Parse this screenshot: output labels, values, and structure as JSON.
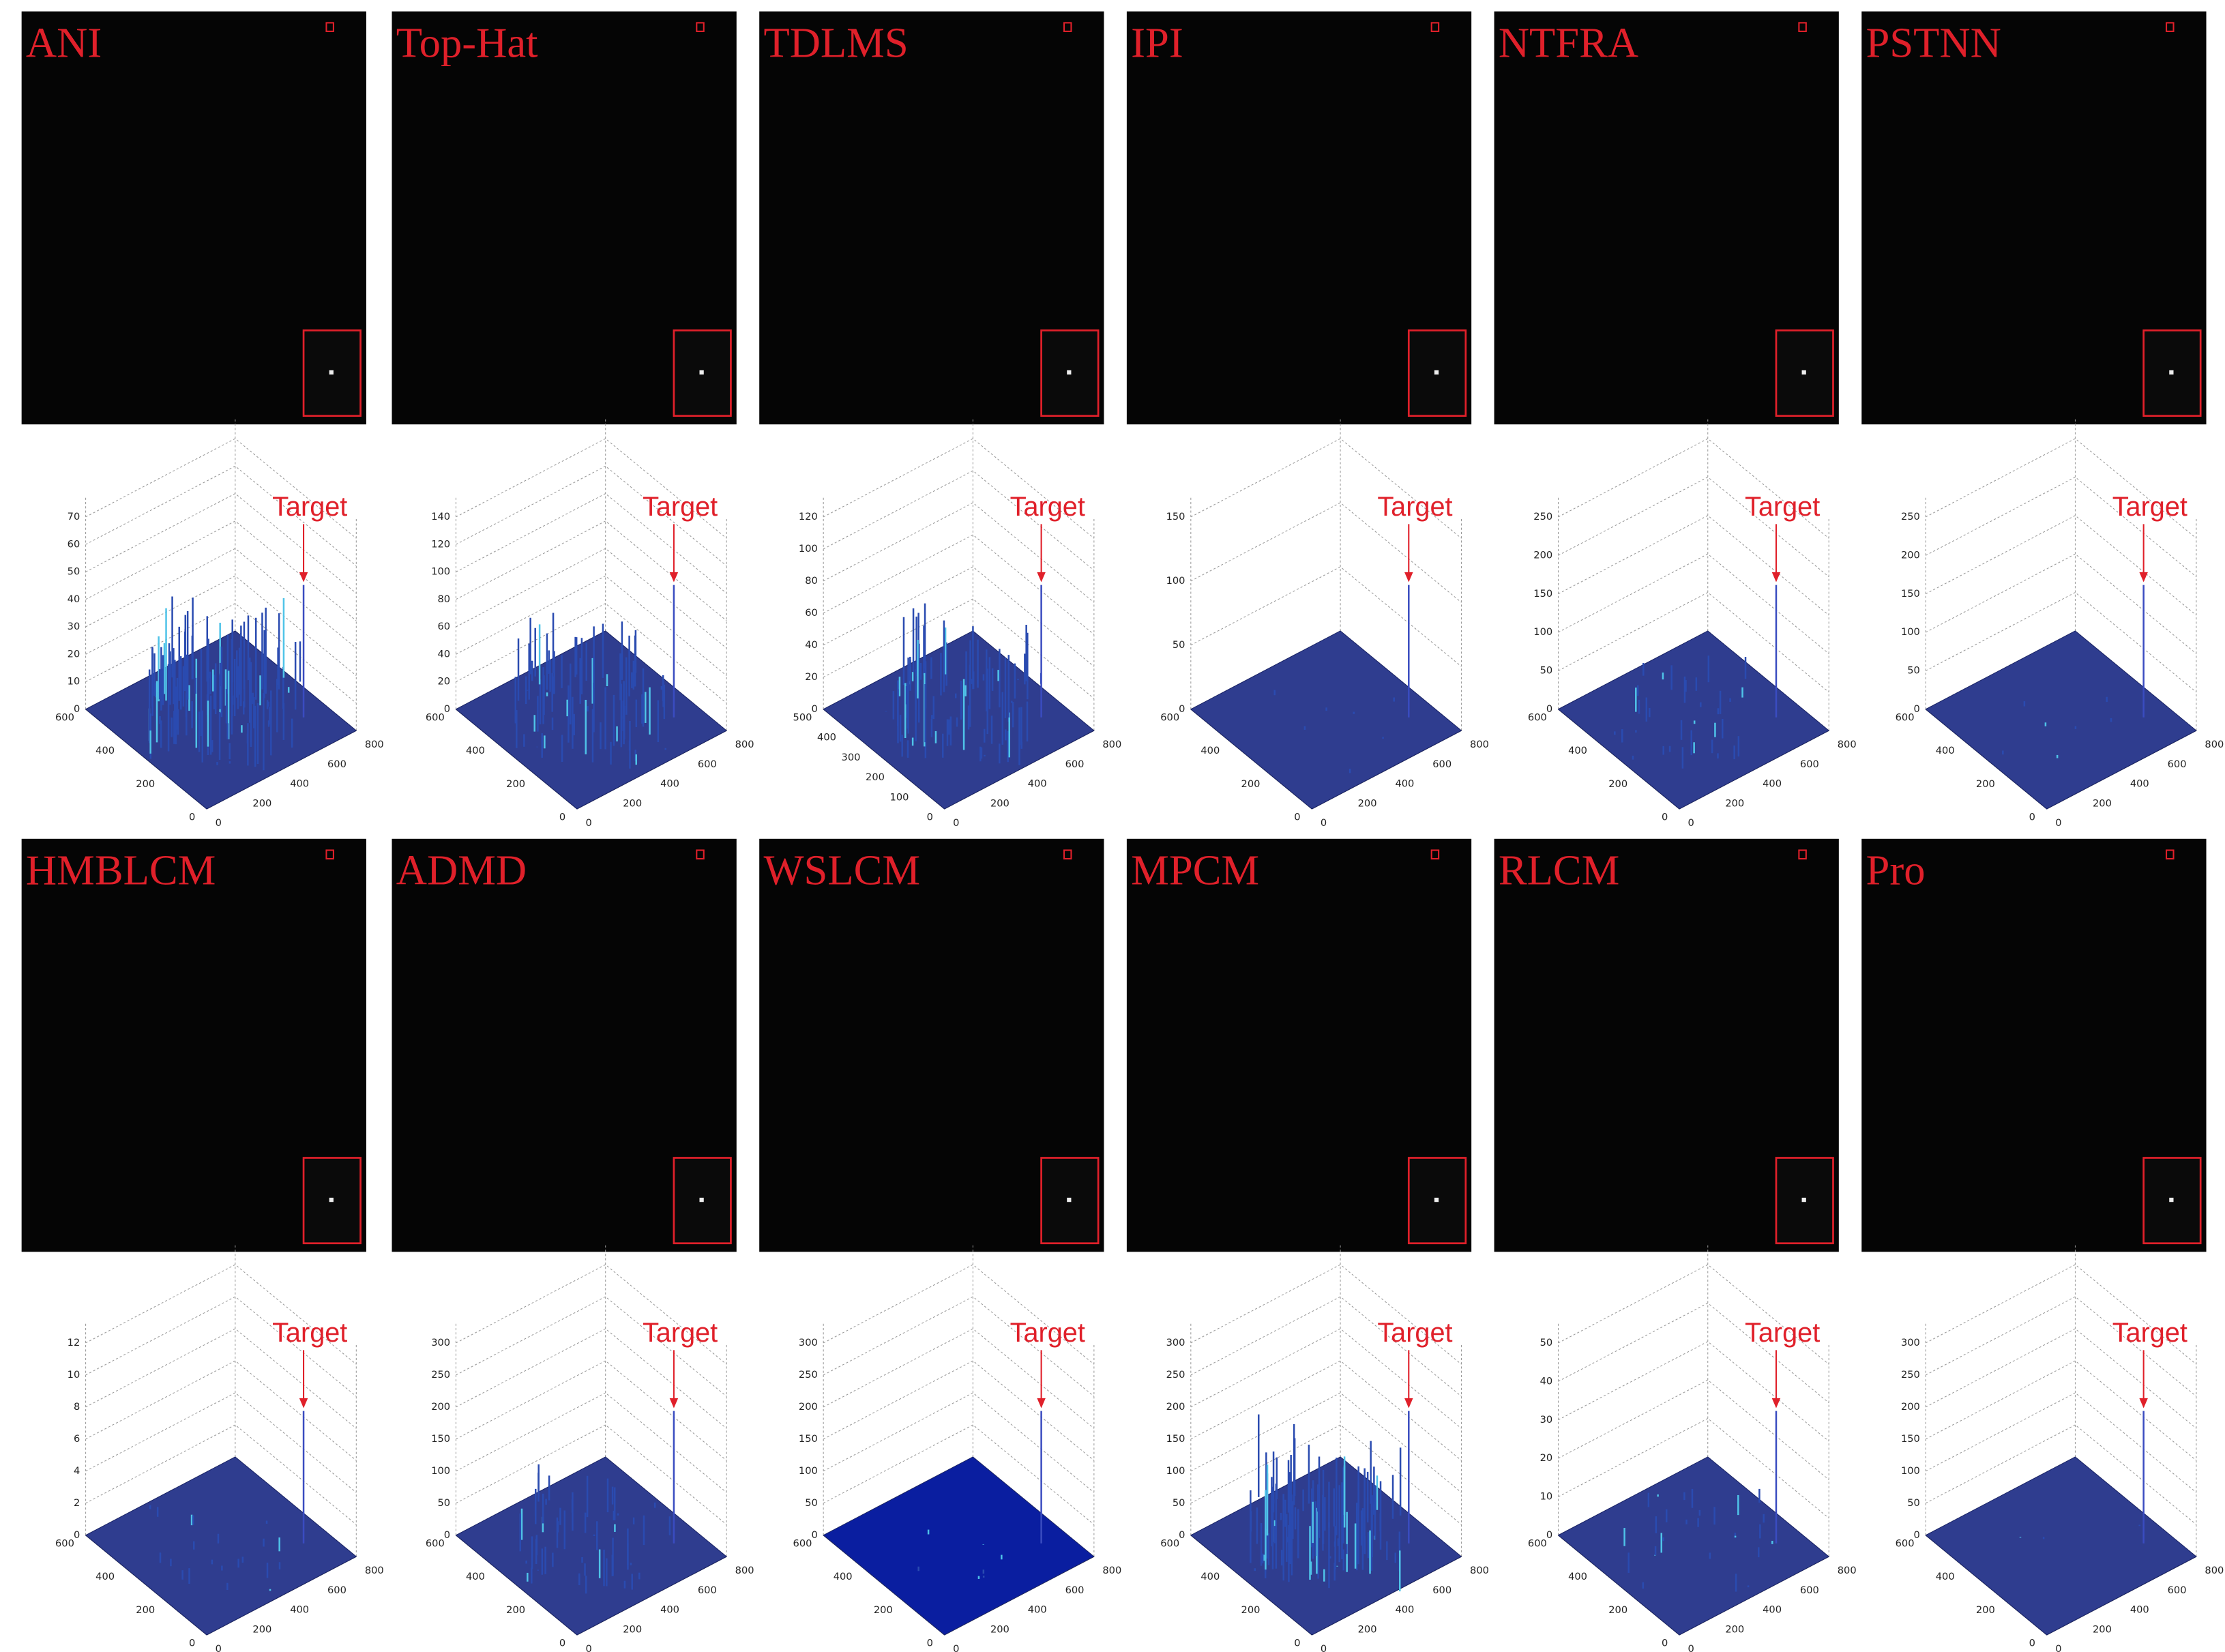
{
  "panels": [
    {
      "label": "ANI",
      "plot": {
        "annotation": "Target",
        "zticks": [
          0,
          10,
          20,
          30,
          40,
          50,
          60,
          70
        ],
        "yticks": [
          600,
          400,
          200,
          0
        ],
        "xticks": [
          0,
          200,
          400,
          600,
          800
        ]
      }
    },
    {
      "label": "Top-Hat",
      "plot": {
        "annotation": "Target",
        "zticks": [
          0,
          20,
          40,
          60,
          80,
          100,
          120,
          140
        ],
        "yticks": [
          600,
          400,
          200,
          0
        ],
        "xticks": [
          0,
          200,
          400,
          600,
          800
        ]
      }
    },
    {
      "label": "TDLMS",
      "plot": {
        "annotation": "Target",
        "zticks": [
          0,
          20,
          40,
          60,
          80,
          100,
          120
        ],
        "yticks": [
          500,
          400,
          300,
          200,
          100,
          0
        ],
        "xticks": [
          0,
          200,
          400,
          600,
          800
        ]
      }
    },
    {
      "label": "IPI",
      "plot": {
        "annotation": "Target",
        "zticks": [
          0,
          50,
          100,
          150
        ],
        "yticks": [
          600,
          400,
          200,
          0
        ],
        "xticks": [
          0,
          200,
          400,
          600,
          800
        ]
      }
    },
    {
      "label": "NTFRA",
      "plot": {
        "annotation": "Target",
        "zticks": [
          0,
          50,
          100,
          150,
          200,
          250
        ],
        "yticks": [
          600,
          400,
          200,
          0
        ],
        "xticks": [
          0,
          200,
          400,
          600,
          800
        ]
      }
    },
    {
      "label": "PSTNN",
      "plot": {
        "annotation": "Target",
        "zticks": [
          0,
          50,
          100,
          150,
          200,
          250
        ],
        "yticks": [
          600,
          400,
          200,
          0
        ],
        "xticks": [
          0,
          200,
          400,
          600,
          800
        ]
      }
    },
    {
      "label": "HMBLCM",
      "plot": {
        "annotation": "Target",
        "zticks": [
          0,
          2,
          4,
          6,
          8,
          10,
          12
        ],
        "yticks": [
          600,
          400,
          200,
          0
        ],
        "xticks": [
          0,
          200,
          400,
          600,
          800
        ]
      }
    },
    {
      "label": "ADMD",
      "plot": {
        "annotation": "Target",
        "zticks": [
          0,
          50,
          100,
          150,
          200,
          250,
          300
        ],
        "yticks": [
          600,
          400,
          200,
          0
        ],
        "xticks": [
          0,
          200,
          400,
          600,
          800
        ]
      }
    },
    {
      "label": "WSLCM",
      "plot": {
        "annotation": "Target",
        "zticks": [
          0,
          50,
          100,
          150,
          200,
          250,
          300
        ],
        "yticks": [
          600,
          400,
          200,
          0
        ],
        "xticks": [
          0,
          200,
          400,
          600,
          800
        ]
      }
    },
    {
      "label": "MPCM",
      "plot": {
        "annotation": "Target",
        "zticks": [
          0,
          50,
          100,
          150,
          200,
          250,
          300
        ],
        "yticks": [
          600,
          400,
          200,
          0
        ],
        "xticks": [
          0,
          200,
          400,
          600,
          800
        ]
      }
    },
    {
      "label": "RLCM",
      "plot": {
        "annotation": "Target",
        "zticks": [
          0,
          10,
          20,
          30,
          40,
          50
        ],
        "yticks": [
          600,
          400,
          200,
          0
        ],
        "xticks": [
          0,
          200,
          400,
          600,
          800
        ]
      }
    },
    {
      "label": "Pro",
      "plot": {
        "annotation": "Target",
        "zticks": [
          0,
          50,
          100,
          150,
          200,
          250,
          300
        ],
        "yticks": [
          600,
          400,
          200,
          0
        ],
        "xticks": [
          0,
          200,
          400,
          600,
          800
        ]
      }
    }
  ]
}
